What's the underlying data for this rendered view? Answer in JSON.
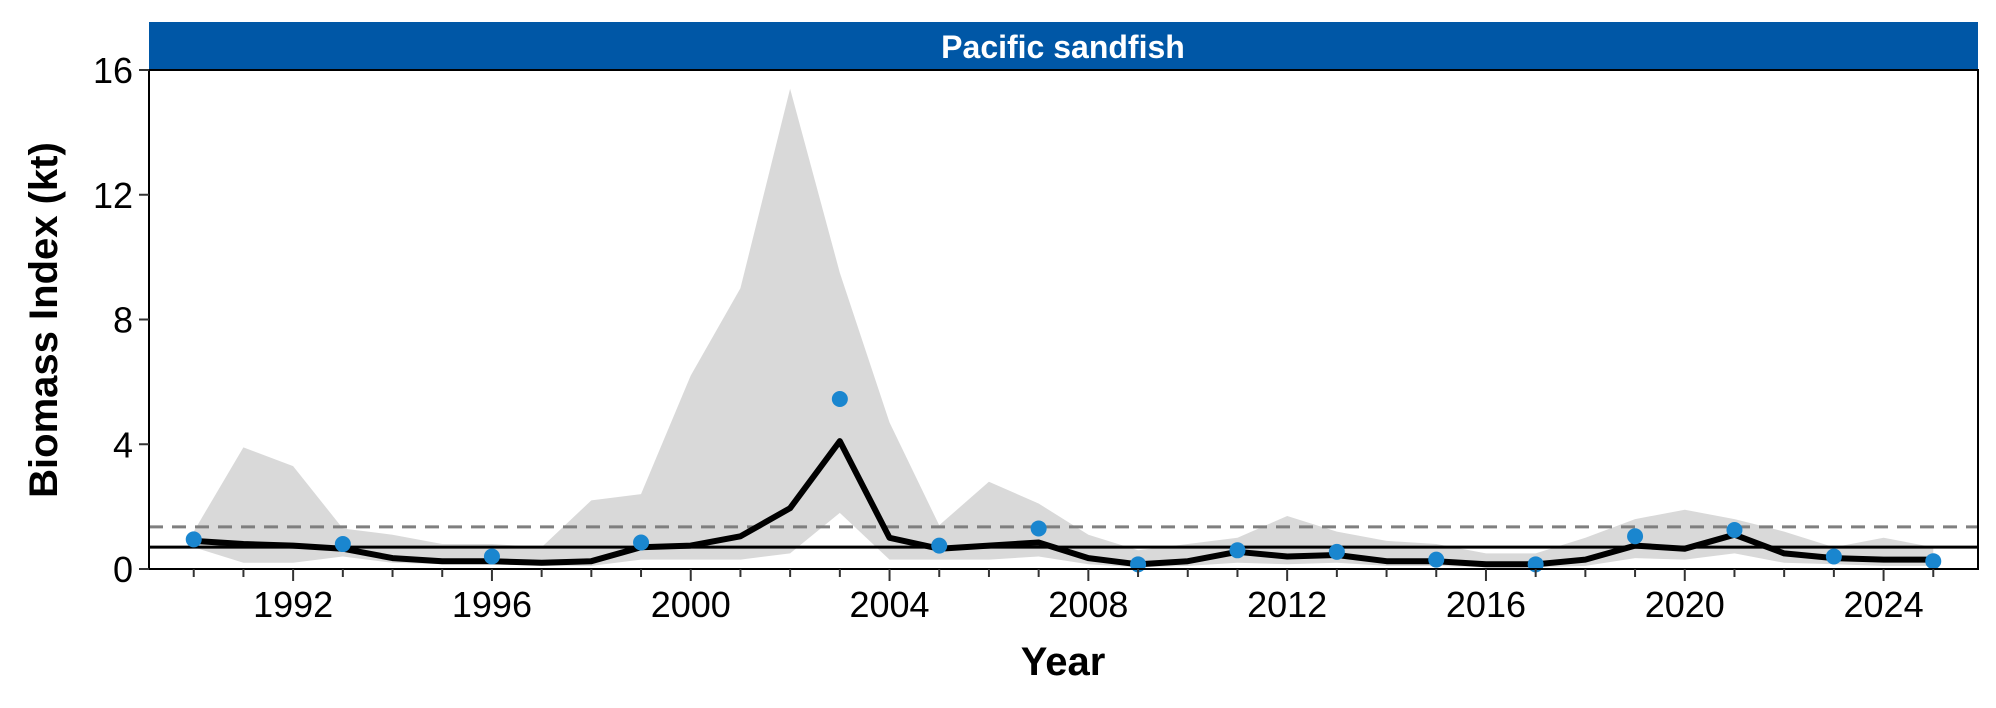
{
  "chart_data": {
    "type": "line",
    "title": "Pacific sandfish",
    "xlabel": "Year",
    "ylabel": "Biomass Index (kt)",
    "xlim": [
      1989.1,
      2025.9
    ],
    "ylim": [
      0,
      16
    ],
    "x_ticks": [
      1992,
      1996,
      2000,
      2004,
      2008,
      2012,
      2016,
      2020,
      2024
    ],
    "x_tick_labels": [
      "1992",
      "1996",
      "2000",
      "2004",
      "2008",
      "2012",
      "2016",
      "2020",
      "2024"
    ],
    "y_ticks": [
      0,
      4,
      8,
      12,
      16
    ],
    "y_tick_labels": [
      "0",
      "4",
      "8",
      "12",
      "16"
    ],
    "x": [
      1990,
      1991,
      1992,
      1993,
      1994,
      1995,
      1996,
      1997,
      1998,
      1999,
      2000,
      2001,
      2002,
      2003,
      2004,
      2005,
      2006,
      2007,
      2008,
      2009,
      2010,
      2011,
      2012,
      2013,
      2014,
      2015,
      2016,
      2017,
      2018,
      2019,
      2020,
      2021,
      2022,
      2023,
      2024,
      2025
    ],
    "series": [
      {
        "role": "fitted index",
        "color": "#000000",
        "values": [
          0.9,
          0.8,
          0.75,
          0.65,
          0.35,
          0.25,
          0.25,
          0.2,
          0.25,
          0.7,
          0.75,
          1.05,
          1.95,
          4.1,
          1.0,
          0.65,
          0.75,
          0.85,
          0.35,
          0.15,
          0.25,
          0.55,
          0.4,
          0.45,
          0.25,
          0.25,
          0.15,
          0.15,
          0.3,
          0.75,
          0.65,
          1.1,
          0.5,
          0.35,
          0.3,
          0.3
        ]
      },
      {
        "role": "confidence band",
        "color": "#d9d9d9",
        "lower": [
          0.7,
          0.2,
          0.2,
          0.4,
          0.2,
          0.15,
          0.15,
          0.1,
          0.1,
          0.3,
          0.3,
          0.3,
          0.5,
          1.8,
          0.3,
          0.3,
          0.3,
          0.4,
          0.15,
          0.05,
          0.1,
          0.2,
          0.15,
          0.2,
          0.1,
          0.1,
          0.05,
          0.05,
          0.1,
          0.35,
          0.3,
          0.5,
          0.2,
          0.15,
          0.1,
          0.1
        ],
        "upper": [
          1.2,
          3.9,
          3.3,
          1.3,
          1.1,
          0.8,
          0.8,
          0.7,
          2.2,
          2.4,
          6.2,
          9.0,
          15.4,
          9.5,
          4.7,
          1.4,
          2.8,
          2.1,
          1.1,
          0.6,
          0.8,
          1.0,
          1.7,
          1.2,
          0.9,
          0.8,
          0.5,
          0.5,
          1.0,
          1.6,
          1.9,
          1.6,
          1.2,
          0.7,
          1.0,
          0.7
        ]
      },
      {
        "role": "observed index",
        "color": "#1a86cf",
        "x": [
          1990,
          1993,
          1996,
          1999,
          2003,
          2005,
          2007,
          2009,
          2011,
          2013,
          2015,
          2017,
          2019,
          2021,
          2023,
          2025
        ],
        "values": [
          0.95,
          0.8,
          0.4,
          0.85,
          5.45,
          0.75,
          1.3,
          0.15,
          0.6,
          0.55,
          0.3,
          0.15,
          1.05,
          1.25,
          0.4,
          0.25
        ]
      }
    ],
    "reference_lines": [
      {
        "style": "dashed",
        "color": "#7f7f7f",
        "y": 1.35
      },
      {
        "style": "solid",
        "color": "#000000",
        "y": 0.7
      }
    ],
    "strip_color": "#0057a6",
    "grid": false,
    "legend": "none"
  }
}
